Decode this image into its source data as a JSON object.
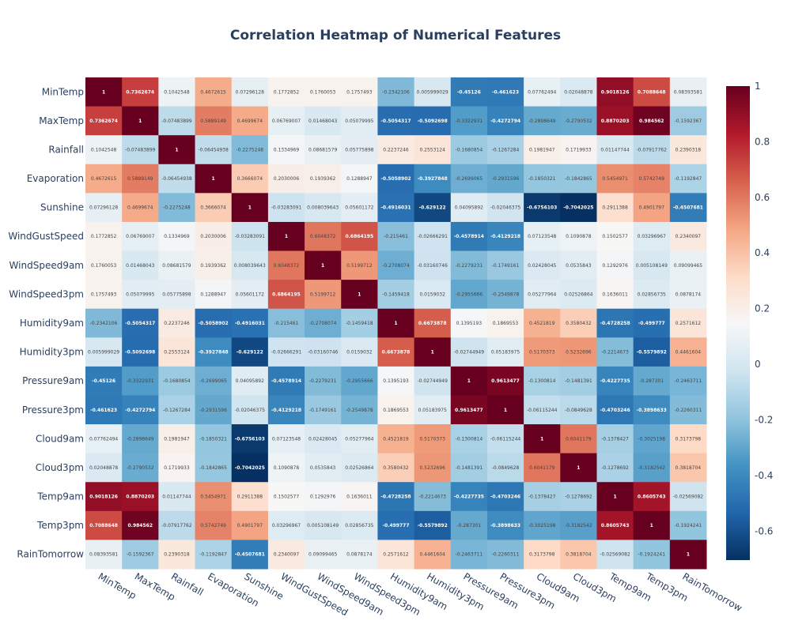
{
  "chart_data": {
    "type": "heatmap",
    "title": "Correlation Heatmap of Numerical Features",
    "variables": [
      "MinTemp",
      "MaxTemp",
      "Rainfall",
      "Evaporation",
      "Sunshine",
      "WindGustSpeed",
      "WindSpeed9am",
      "WindSpeed3pm",
      "Humidity9am",
      "Humidity3pm",
      "Pressure9am",
      "Pressure3pm",
      "Cloud9am",
      "Cloud3pm",
      "Temp9am",
      "Temp3pm",
      "RainTomorrow"
    ],
    "matrix": [
      [
        "1",
        "0.7362674",
        "0.1042548",
        "0.4672615",
        "0.07296128",
        "0.1772852",
        "0.1760053",
        "0.1757493",
        "-0.2342106",
        "0.005999029",
        "-0.45126",
        "-0.461623",
        "0.07762494",
        "0.02048878",
        "0.9018126",
        "0.7088648",
        "0.08393581"
      ],
      [
        "0.7362674",
        "1",
        "-0.07483899",
        "0.5889149",
        "0.4699674",
        "0.06769007",
        "0.01468043",
        "0.05079995",
        "-0.5054317",
        "-0.5092698",
        "-0.3322931",
        "-0.4272794",
        "-0.2898649",
        "-0.2790532",
        "0.8870203",
        "0.984562",
        "-0.1592367"
      ],
      [
        "0.1042548",
        "-0.07483899",
        "1",
        "-0.06454938",
        "-0.2275248",
        "0.1334969",
        "0.08681579",
        "0.05775898",
        "0.2237246",
        "0.2553124",
        "-0.1680854",
        "-0.1267284",
        "0.1981947",
        "0.1719933",
        "0.01147744",
        "-0.07917762",
        "0.2390318"
      ],
      [
        "0.4672615",
        "0.5889149",
        "-0.06454938",
        "1",
        "0.3666074",
        "0.2030006",
        "0.1939362",
        "0.1288947",
        "-0.5058902",
        "-0.3927848",
        "-0.2699065",
        "-0.2931596",
        "-0.1850321",
        "-0.1842865",
        "0.5454971",
        "0.5742749",
        "-0.1192847"
      ],
      [
        "0.07296128",
        "0.4699674",
        "-0.2275248",
        "0.3666074",
        "1",
        "-0.03283091",
        "0.008039643",
        "0.05601172",
        "-0.4916031",
        "-0.629122",
        "0.04095892",
        "-0.02046375",
        "-0.6756103",
        "-0.7042025",
        "0.2911388",
        "0.4901797",
        "-0.4507681"
      ],
      [
        "0.1772852",
        "0.06769007",
        "0.1334969",
        "0.2030006",
        "-0.03283091",
        "1",
        "0.6048372",
        "0.6864195",
        "-0.215461",
        "-0.02666291",
        "-0.4578914",
        "-0.4129218",
        "0.07123548",
        "0.1090878",
        "0.1502577",
        "0.03296967",
        "0.2340097"
      ],
      [
        "0.1760053",
        "0.01468043",
        "0.08681579",
        "0.1939362",
        "0.008039643",
        "0.6048372",
        "1",
        "0.5199712",
        "-0.2708074",
        "-0.03160746",
        "-0.2279231",
        "-0.1749161",
        "0.02428045",
        "0.0535843",
        "0.1292976",
        "0.005108149",
        "0.09099465"
      ],
      [
        "0.1757493",
        "0.05079995",
        "0.05775898",
        "0.1288947",
        "0.05601172",
        "0.6864195",
        "0.5199712",
        "1",
        "-0.1459418",
        "0.0159032",
        "-0.2955666",
        "-0.2549878",
        "0.05277964",
        "0.02526864",
        "0.1636011",
        "0.02856735",
        "0.0878174"
      ],
      [
        "-0.2342106",
        "-0.5054317",
        "0.2237246",
        "-0.5058902",
        "-0.4916031",
        "-0.215461",
        "-0.2708074",
        "-0.1459418",
        "1",
        "0.6673878",
        "0.1395193",
        "0.1869553",
        "0.4521819",
        "0.3580432",
        "-0.4728258",
        "-0.499777",
        "0.2571612"
      ],
      [
        "0.005999029",
        "-0.5092698",
        "0.2553124",
        "-0.3927848",
        "-0.629122",
        "-0.02666291",
        "-0.03160746",
        "0.0159032",
        "0.6673878",
        "1",
        "-0.02744949",
        "0.05183975",
        "0.5170373",
        "0.5232696",
        "-0.2214673",
        "-0.5579892",
        "0.4461604"
      ],
      [
        "-0.45126",
        "-0.3322931",
        "-0.1680854",
        "-0.2699065",
        "0.04095892",
        "-0.4578914",
        "-0.2279231",
        "-0.2955666",
        "0.1395193",
        "-0.02744949",
        "1",
        "0.9613477",
        "-0.1300814",
        "-0.1481391",
        "-0.4227735",
        "-0.287301",
        "-0.2463711"
      ],
      [
        "-0.461623",
        "-0.4272794",
        "-0.1267284",
        "-0.2931596",
        "-0.02046375",
        "-0.4129218",
        "-0.1749161",
        "-0.2549878",
        "0.1869553",
        "0.05183975",
        "0.9613477",
        "1",
        "-0.06115244",
        "-0.0849628",
        "-0.4703246",
        "-0.3898633",
        "-0.2260311"
      ],
      [
        "0.07762494",
        "-0.2898649",
        "0.1981947",
        "-0.1850321",
        "-0.6756103",
        "0.07123548",
        "0.02428045",
        "0.05277964",
        "0.4521819",
        "0.5170373",
        "-0.1300814",
        "-0.06115244",
        "1",
        "0.6041179",
        "-0.1378427",
        "-0.3025198",
        "0.3173798"
      ],
      [
        "0.02048878",
        "-0.2790532",
        "0.1719933",
        "-0.1842865",
        "-0.7042025",
        "0.1090878",
        "0.0535843",
        "0.02526864",
        "0.3580432",
        "0.5232696",
        "-0.1481391",
        "-0.0849628",
        "0.6041179",
        "1",
        "-0.1278692",
        "-0.3182542",
        "0.3818704"
      ],
      [
        "0.9018126",
        "0.8870203",
        "0.01147744",
        "0.5454971",
        "0.2911388",
        "0.1502577",
        "0.1292976",
        "0.1636011",
        "-0.4728258",
        "-0.2214673",
        "-0.4227735",
        "-0.4703246",
        "-0.1378427",
        "-0.1278692",
        "1",
        "0.8605743",
        "-0.02569082"
      ],
      [
        "0.7088648",
        "0.984562",
        "-0.07917762",
        "0.5742749",
        "0.4901797",
        "0.03296967",
        "0.005108149",
        "0.02856735",
        "-0.499777",
        "-0.5579892",
        "-0.287301",
        "-0.3898633",
        "-0.3025198",
        "-0.3182542",
        "0.8605743",
        "1",
        "-0.1924241"
      ],
      [
        "0.08393581",
        "-0.1592367",
        "0.2390318",
        "-0.1192847",
        "-0.4507681",
        "0.2340097",
        "0.09099465",
        "0.0878174",
        "0.2571612",
        "0.4461604",
        "-0.2463711",
        "-0.2260311",
        "0.3173798",
        "0.3818704",
        "-0.02569082",
        "-0.1924241",
        "1"
      ]
    ],
    "colorscale": "RdBu",
    "zmin": -0.7042025,
    "zmax": 1,
    "colorbar_ticks": [
      "-0.6",
      "-0.4",
      "-0.2",
      "0",
      "0.2",
      "0.4",
      "0.6",
      "0.8",
      "1"
    ],
    "colorbar_tick_values": [
      -0.6,
      -0.4,
      -0.2,
      0,
      0.2,
      0.4,
      0.6,
      0.8,
      1
    ],
    "grid": false,
    "legend": "right"
  }
}
